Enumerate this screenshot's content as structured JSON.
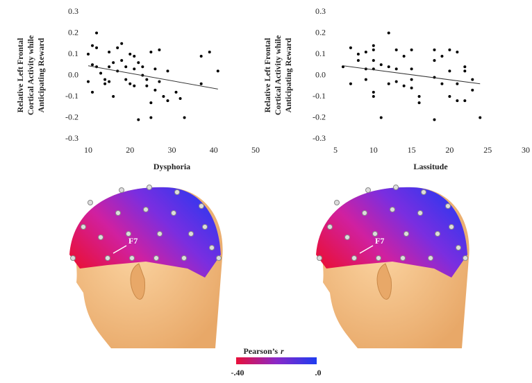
{
  "chart_data": [
    {
      "type": "scatter",
      "xlabel": "Dysphoria",
      "ylabel": [
        "Relative Left Frontal",
        "Cortical Activity while",
        "Anticipating Reward"
      ],
      "x": [
        10,
        10,
        11,
        11,
        11,
        12,
        12,
        12,
        13,
        14,
        14,
        15,
        15,
        15,
        16,
        16,
        17,
        17,
        18,
        18,
        19,
        19,
        20,
        20,
        21,
        21,
        21,
        22,
        22,
        23,
        23,
        24,
        24,
        25,
        25,
        25,
        26,
        26,
        27,
        27,
        28,
        29,
        29,
        31,
        32,
        33,
        37,
        37,
        39,
        41
      ],
      "values": [
        0.1,
        -0.03,
        0.14,
        0.05,
        -0.08,
        0.2,
        0.13,
        0.04,
        0.01,
        -0.02,
        -0.04,
        0.11,
        0.04,
        -0.03,
        0.06,
        -0.1,
        0.13,
        0.02,
        0.15,
        0.07,
        0.04,
        -0.02,
        0.1,
        -0.04,
        0.09,
        0.03,
        -0.05,
        0.06,
        -0.21,
        0.04,
        0.0,
        -0.02,
        -0.05,
        0.11,
        -0.13,
        -0.2,
        0.03,
        -0.07,
        0.12,
        -0.03,
        -0.1,
        0.02,
        -0.12,
        -0.08,
        -0.11,
        -0.2,
        0.09,
        -0.04,
        0.11,
        0.02
      ],
      "color": "#000000",
      "trendline": {
        "x": [
          10,
          41
        ],
        "y": [
          0.045,
          -0.065
        ]
      },
      "xlim": [
        10,
        50
      ],
      "xticks": [
        10,
        20,
        30,
        40,
        50
      ],
      "ylim": [
        -0.3,
        0.3
      ],
      "yticks": [
        -0.3,
        -0.2,
        -0.1,
        {
          "value": 0,
          "label": "0.0"
        },
        0.1,
        0.2,
        0.3
      ]
    },
    {
      "type": "scatter",
      "xlabel": "Lassitude",
      "ylabel": [
        "Relative Left Frontal",
        "Cortical Activity while",
        "Anticipating Reward"
      ],
      "x": [
        6,
        7,
        7,
        8,
        8,
        9,
        9,
        9,
        10,
        10,
        10,
        10,
        10,
        10,
        11,
        11,
        12,
        12,
        12,
        13,
        13,
        13,
        14,
        14,
        15,
        15,
        15,
        15,
        16,
        16,
        18,
        18,
        18,
        18,
        19,
        19,
        20,
        20,
        20,
        21,
        21,
        21,
        22,
        22,
        22,
        23,
        23,
        24
      ],
      "values": [
        0.04,
        0.13,
        -0.04,
        0.07,
        0.1,
        0.11,
        0.03,
        -0.02,
        0.14,
        0.12,
        0.07,
        0.03,
        -0.08,
        -0.1,
        0.05,
        -0.2,
        0.2,
        0.04,
        -0.04,
        0.12,
        0.03,
        -0.03,
        0.09,
        -0.05,
        0.12,
        0.03,
        -0.02,
        -0.06,
        -0.1,
        -0.13,
        0.12,
        0.07,
        -0.01,
        -0.21,
        0.09,
        -0.04,
        0.12,
        0.02,
        -0.1,
        0.11,
        -0.04,
        -0.12,
        0.04,
        0.02,
        -0.12,
        -0.07,
        -0.02,
        -0.2
      ],
      "color": "#000000",
      "trendline": {
        "x": [
          6,
          24
        ],
        "y": [
          0.045,
          -0.04
        ]
      },
      "xlim": [
        5,
        30
      ],
      "xticks": [
        5,
        10,
        15,
        20,
        25,
        30
      ],
      "ylim": [
        -0.3,
        0.3
      ],
      "yticks": [
        -0.3,
        -0.2,
        -0.1,
        {
          "value": 0,
          "label": "0.0"
        },
        0.1,
        0.2,
        0.3
      ]
    }
  ],
  "heads": [
    {
      "electrode_label": "F7"
    },
    {
      "electrode_label": "F7"
    }
  ],
  "colorbar": {
    "title": "Pearson’s",
    "title_italic": "r",
    "min_label": "-.40",
    "max_label": ".0"
  }
}
